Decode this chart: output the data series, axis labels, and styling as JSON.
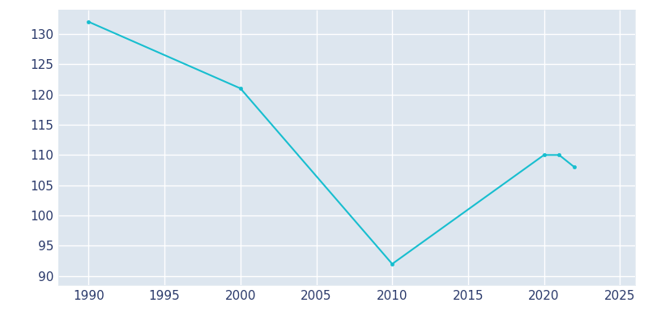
{
  "years": [
    1990,
    2000,
    2010,
    2020,
    2021,
    2022
  ],
  "population": [
    132,
    121,
    92,
    110,
    110,
    108
  ],
  "line_color": "#17BECF",
  "marker_style": "o",
  "marker_size": 3,
  "background_color": "#DAE3ED",
  "plot_background_color": "#DDE6EF",
  "grid_color": "#FFFFFF",
  "outer_background": "#FFFFFF",
  "xlim": [
    1988,
    2026
  ],
  "ylim": [
    88.5,
    134
  ],
  "yticks": [
    90,
    95,
    100,
    105,
    110,
    115,
    120,
    125,
    130
  ],
  "xticks": [
    1990,
    1995,
    2000,
    2005,
    2010,
    2015,
    2020,
    2025
  ],
  "tick_color": "#2B3A6B",
  "tick_fontsize": 11
}
